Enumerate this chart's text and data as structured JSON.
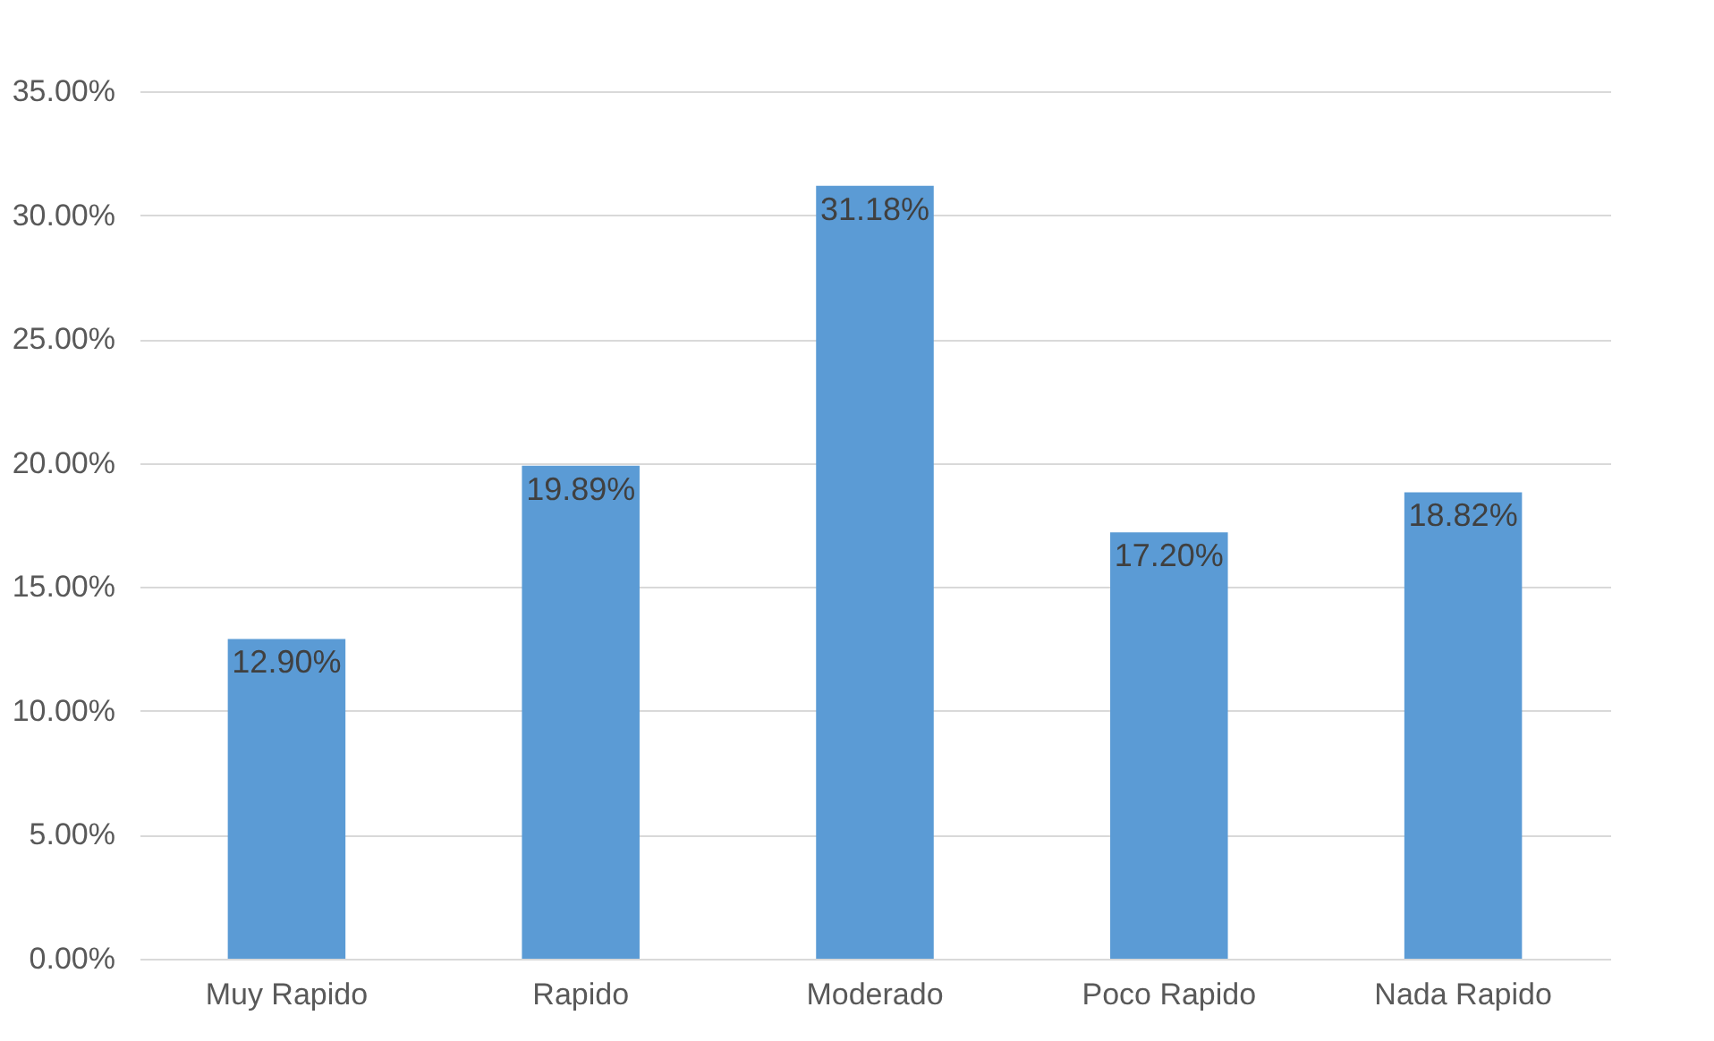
{
  "chart_data": {
    "type": "bar",
    "categories": [
      "Muy Rapido",
      "Rapido",
      "Moderado",
      "Poco Rapido",
      "Nada Rapido"
    ],
    "values": [
      12.9,
      19.89,
      31.18,
      17.2,
      18.82
    ],
    "value_labels": [
      "12.90%",
      "19.89%",
      "31.18%",
      "17.20%",
      "18.82%"
    ],
    "color": "#5b9bd5",
    "ylim": [
      0,
      35
    ],
    "yticks": [
      {
        "value": 0,
        "label": "0.00%"
      },
      {
        "value": 5,
        "label": "5.00%"
      },
      {
        "value": 10,
        "label": "10.00%"
      },
      {
        "value": 15,
        "label": "15.00%"
      },
      {
        "value": 20,
        "label": "20.00%"
      },
      {
        "value": 25,
        "label": "25.00%"
      },
      {
        "value": 30,
        "label": "30.00%"
      },
      {
        "value": 35,
        "label": "35.00%"
      }
    ],
    "grid": "y"
  }
}
